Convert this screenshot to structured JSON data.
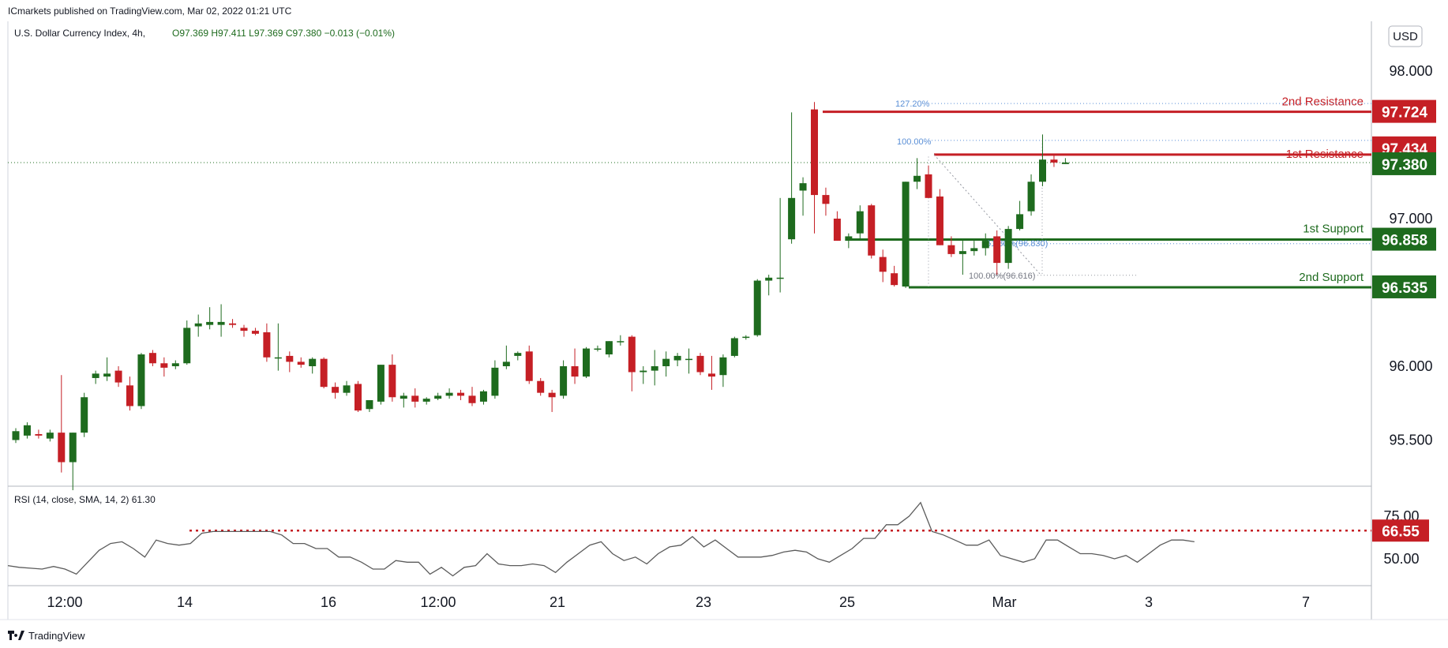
{
  "header": {
    "publisher": "ICmarkets published on TradingView.com, Mar 02, 2022 01:21 UTC",
    "symbol": "U.S. Dollar Currency Index, 4h,",
    "ohlc": "O97.369  H97.411  L97.369  C97.380  −0.013  (−0.01%)"
  },
  "currency_button": "USD",
  "footer": {
    "brand": "TradingView"
  },
  "rsi": {
    "label": "RSI (14, close, SMA, 14, 2)  61.30",
    "level_value": 66.55,
    "ticks": [
      "75.00",
      "50.00"
    ],
    "series": [
      46,
      45,
      44.5,
      44,
      45.5,
      44,
      41,
      48,
      55,
      59,
      60,
      56,
      51,
      61,
      59,
      58,
      59,
      65,
      66,
      66,
      66,
      66,
      66,
      66,
      64,
      59,
      59,
      56,
      56,
      51,
      51,
      48,
      44,
      44,
      49,
      48,
      48,
      41,
      45,
      40,
      45,
      46,
      53,
      47,
      46,
      46,
      47,
      46,
      42,
      48,
      53,
      58,
      60,
      53,
      49,
      51,
      47,
      53,
      57,
      58,
      63,
      57,
      61,
      56,
      51,
      51,
      51,
      52,
      54,
      55,
      54,
      50,
      48,
      52,
      56,
      62,
      62,
      70,
      70,
      75,
      83,
      66,
      64,
      61,
      58,
      58,
      61,
      52,
      50,
      48,
      50,
      61,
      61,
      57,
      53,
      53,
      52,
      50,
      52,
      48,
      53,
      58,
      61,
      61,
      60
    ]
  },
  "price_labels": {
    "r2": "97.724",
    "r1": "97.434",
    "current": "97.380",
    "s1": "96.858",
    "s2": "96.535",
    "rsi": "66.55"
  },
  "annotations": {
    "r2": "2nd Resistance",
    "r1": "1st Resistance",
    "s1": "1st Support",
    "s2": "2nd Support",
    "fib_top": "127.20%",
    "fib_mid": "100.00%",
    "fib_low": "100.00%(96.616)",
    "fib_618": "61.80%(96.830)"
  },
  "colors": {
    "up": "#1e6b1e",
    "down": "#c51f25",
    "support": "#1e6b1e",
    "resistance": "#c51f25",
    "current": "#1e6b1e",
    "fib": "#5a8fd6",
    "rsi_line": "#5b5b5b",
    "rsi_level": "#c51f25"
  },
  "chart_data": {
    "type": "candlestick",
    "title": "U.S. Dollar Currency Index, 4h",
    "y_ticks": [
      "98.000",
      "97.000",
      "96.000",
      "95.500"
    ],
    "x_ticks": [
      "12:00",
      "14",
      "16",
      "12:00",
      "21",
      "23",
      "25",
      "Mar",
      "3",
      "7"
    ],
    "ylim": [
      95.2,
      98.35
    ],
    "levels": [
      {
        "name": "2nd Resistance",
        "value": 97.724
      },
      {
        "name": "1st Resistance",
        "value": 97.434
      },
      {
        "name": "1st Support",
        "value": 96.858
      },
      {
        "name": "2nd Support",
        "value": 96.535
      }
    ],
    "current_price": 97.38,
    "candles": [
      {
        "o": 95.5,
        "h": 95.58,
        "l": 95.48,
        "c": 95.56
      },
      {
        "o": 95.53,
        "h": 95.62,
        "l": 95.51,
        "c": 95.6
      },
      {
        "o": 95.54,
        "h": 95.57,
        "l": 95.51,
        "c": 95.53
      },
      {
        "o": 95.51,
        "h": 95.57,
        "l": 95.49,
        "c": 95.55
      },
      {
        "o": 95.55,
        "h": 95.94,
        "l": 95.28,
        "c": 95.35
      },
      {
        "o": 95.35,
        "h": 95.55,
        "l": 95.16,
        "c": 95.55
      },
      {
        "o": 95.55,
        "h": 95.82,
        "l": 95.52,
        "c": 95.79
      },
      {
        "o": 95.92,
        "h": 95.97,
        "l": 95.88,
        "c": 95.95
      },
      {
        "o": 95.93,
        "h": 96.06,
        "l": 95.9,
        "c": 95.95
      },
      {
        "o": 95.97,
        "h": 96.0,
        "l": 95.86,
        "c": 95.89
      },
      {
        "o": 95.87,
        "h": 95.93,
        "l": 95.7,
        "c": 95.73
      },
      {
        "o": 95.73,
        "h": 96.09,
        "l": 95.71,
        "c": 96.08
      },
      {
        "o": 96.09,
        "h": 96.11,
        "l": 96.0,
        "c": 96.02
      },
      {
        "o": 96.02,
        "h": 96.06,
        "l": 95.93,
        "c": 95.99
      },
      {
        "o": 96.0,
        "h": 96.04,
        "l": 95.98,
        "c": 96.02
      },
      {
        "o": 96.02,
        "h": 96.31,
        "l": 96.01,
        "c": 96.26
      },
      {
        "o": 96.27,
        "h": 96.35,
        "l": 96.2,
        "c": 96.29
      },
      {
        "o": 96.28,
        "h": 96.4,
        "l": 96.25,
        "c": 96.3
      },
      {
        "o": 96.28,
        "h": 96.42,
        "l": 96.2,
        "c": 96.3
      },
      {
        "o": 96.29,
        "h": 96.32,
        "l": 96.26,
        "c": 96.28
      },
      {
        "o": 96.26,
        "h": 96.28,
        "l": 96.2,
        "c": 96.24
      },
      {
        "o": 96.24,
        "h": 96.26,
        "l": 96.21,
        "c": 96.22
      },
      {
        "o": 96.23,
        "h": 96.29,
        "l": 96.03,
        "c": 96.06
      },
      {
        "o": 96.06,
        "h": 96.29,
        "l": 95.97,
        "c": 96.06
      },
      {
        "o": 96.07,
        "h": 96.1,
        "l": 95.96,
        "c": 96.03
      },
      {
        "o": 96.03,
        "h": 96.06,
        "l": 95.99,
        "c": 96.01
      },
      {
        "o": 96.0,
        "h": 96.06,
        "l": 95.95,
        "c": 96.05
      },
      {
        "o": 96.05,
        "h": 96.06,
        "l": 95.85,
        "c": 95.86
      },
      {
        "o": 95.86,
        "h": 95.89,
        "l": 95.78,
        "c": 95.82
      },
      {
        "o": 95.82,
        "h": 95.9,
        "l": 95.8,
        "c": 95.87
      },
      {
        "o": 95.88,
        "h": 95.9,
        "l": 95.69,
        "c": 95.7
      },
      {
        "o": 95.71,
        "h": 95.77,
        "l": 95.69,
        "c": 95.77
      },
      {
        "o": 95.76,
        "h": 96.01,
        "l": 95.74,
        "c": 96.01
      },
      {
        "o": 96.01,
        "h": 96.08,
        "l": 95.76,
        "c": 95.79
      },
      {
        "o": 95.78,
        "h": 95.82,
        "l": 95.72,
        "c": 95.8
      },
      {
        "o": 95.8,
        "h": 95.85,
        "l": 95.72,
        "c": 95.76
      },
      {
        "o": 95.76,
        "h": 95.79,
        "l": 95.74,
        "c": 95.78
      },
      {
        "o": 95.78,
        "h": 95.82,
        "l": 95.77,
        "c": 95.8
      },
      {
        "o": 95.8,
        "h": 95.85,
        "l": 95.78,
        "c": 95.82
      },
      {
        "o": 95.82,
        "h": 95.84,
        "l": 95.77,
        "c": 95.8
      },
      {
        "o": 95.8,
        "h": 95.86,
        "l": 95.73,
        "c": 95.75
      },
      {
        "o": 95.76,
        "h": 95.84,
        "l": 95.74,
        "c": 95.83
      },
      {
        "o": 95.8,
        "h": 96.04,
        "l": 95.78,
        "c": 95.99
      },
      {
        "o": 96.0,
        "h": 96.14,
        "l": 95.98,
        "c": 96.03
      },
      {
        "o": 96.07,
        "h": 96.1,
        "l": 96.04,
        "c": 96.09
      },
      {
        "o": 96.1,
        "h": 96.14,
        "l": 95.88,
        "c": 95.9
      },
      {
        "o": 95.9,
        "h": 95.92,
        "l": 95.8,
        "c": 95.82
      },
      {
        "o": 95.82,
        "h": 95.84,
        "l": 95.69,
        "c": 95.79
      },
      {
        "o": 95.8,
        "h": 96.04,
        "l": 95.78,
        "c": 96.0
      },
      {
        "o": 96.0,
        "h": 96.12,
        "l": 95.88,
        "c": 95.93
      },
      {
        "o": 95.93,
        "h": 96.13,
        "l": 95.92,
        "c": 96.12
      },
      {
        "o": 96.12,
        "h": 96.14,
        "l": 96.1,
        "c": 96.12
      },
      {
        "o": 96.08,
        "h": 96.17,
        "l": 96.06,
        "c": 96.17
      },
      {
        "o": 96.17,
        "h": 96.21,
        "l": 96.14,
        "c": 96.17
      },
      {
        "o": 96.2,
        "h": 96.21,
        "l": 95.83,
        "c": 95.96
      },
      {
        "o": 95.96,
        "h": 96.0,
        "l": 95.88,
        "c": 95.97
      },
      {
        "o": 95.97,
        "h": 96.11,
        "l": 95.87,
        "c": 96.0
      },
      {
        "o": 96.0,
        "h": 96.1,
        "l": 95.93,
        "c": 96.05
      },
      {
        "o": 96.04,
        "h": 96.09,
        "l": 96.0,
        "c": 96.07
      },
      {
        "o": 96.05,
        "h": 96.12,
        "l": 95.95,
        "c": 96.05
      },
      {
        "o": 96.07,
        "h": 96.09,
        "l": 95.94,
        "c": 95.96
      },
      {
        "o": 95.95,
        "h": 96.07,
        "l": 95.84,
        "c": 95.93
      },
      {
        "o": 95.94,
        "h": 96.08,
        "l": 95.86,
        "c": 96.06
      },
      {
        "o": 96.07,
        "h": 96.2,
        "l": 96.06,
        "c": 96.19
      },
      {
        "o": 96.2,
        "h": 96.21,
        "l": 96.18,
        "c": 96.2
      },
      {
        "o": 96.21,
        "h": 96.59,
        "l": 96.2,
        "c": 96.58
      },
      {
        "o": 96.58,
        "h": 96.62,
        "l": 96.48,
        "c": 96.6
      },
      {
        "o": 96.6,
        "h": 97.14,
        "l": 96.5,
        "c": 96.6
      },
      {
        "o": 96.86,
        "h": 97.72,
        "l": 96.83,
        "c": 97.14
      },
      {
        "o": 97.19,
        "h": 97.28,
        "l": 97.02,
        "c": 97.24
      },
      {
        "o": 97.74,
        "h": 97.79,
        "l": 96.9,
        "c": 97.16
      },
      {
        "o": 97.16,
        "h": 97.21,
        "l": 97.02,
        "c": 97.1
      },
      {
        "o": 97.0,
        "h": 97.05,
        "l": 96.85,
        "c": 96.85
      },
      {
        "o": 96.85,
        "h": 96.9,
        "l": 96.8,
        "c": 96.88
      },
      {
        "o": 96.9,
        "h": 97.09,
        "l": 96.85,
        "c": 97.05
      },
      {
        "o": 97.09,
        "h": 97.1,
        "l": 96.73,
        "c": 96.75
      },
      {
        "o": 96.74,
        "h": 96.79,
        "l": 96.57,
        "c": 96.64
      },
      {
        "o": 96.63,
        "h": 96.68,
        "l": 96.54,
        "c": 96.55
      },
      {
        "o": 96.54,
        "h": 97.25,
        "l": 96.53,
        "c": 97.25
      },
      {
        "o": 97.25,
        "h": 97.41,
        "l": 97.2,
        "c": 97.29
      },
      {
        "o": 97.3,
        "h": 97.36,
        "l": 97.14,
        "c": 97.14
      },
      {
        "o": 97.15,
        "h": 97.2,
        "l": 96.82,
        "c": 96.82
      },
      {
        "o": 96.82,
        "h": 96.88,
        "l": 96.74,
        "c": 96.76
      },
      {
        "o": 96.76,
        "h": 96.85,
        "l": 96.62,
        "c": 96.78
      },
      {
        "o": 96.78,
        "h": 96.85,
        "l": 96.75,
        "c": 96.8
      },
      {
        "o": 96.8,
        "h": 96.9,
        "l": 96.75,
        "c": 96.85
      },
      {
        "o": 96.88,
        "h": 96.92,
        "l": 96.62,
        "c": 96.7
      },
      {
        "o": 96.7,
        "h": 96.95,
        "l": 96.66,
        "c": 96.93
      },
      {
        "o": 96.93,
        "h": 97.12,
        "l": 96.92,
        "c": 97.03
      },
      {
        "o": 97.05,
        "h": 97.3,
        "l": 97.02,
        "c": 97.25
      },
      {
        "o": 97.25,
        "h": 97.57,
        "l": 97.22,
        "c": 97.4
      },
      {
        "o": 97.4,
        "h": 97.43,
        "l": 97.35,
        "c": 97.38
      },
      {
        "o": 97.37,
        "h": 97.41,
        "l": 97.37,
        "c": 97.38
      }
    ],
    "rsi": {
      "level": 66.55,
      "ylim": [
        38,
        85
      ]
    },
    "grid": false,
    "legend": "none"
  }
}
